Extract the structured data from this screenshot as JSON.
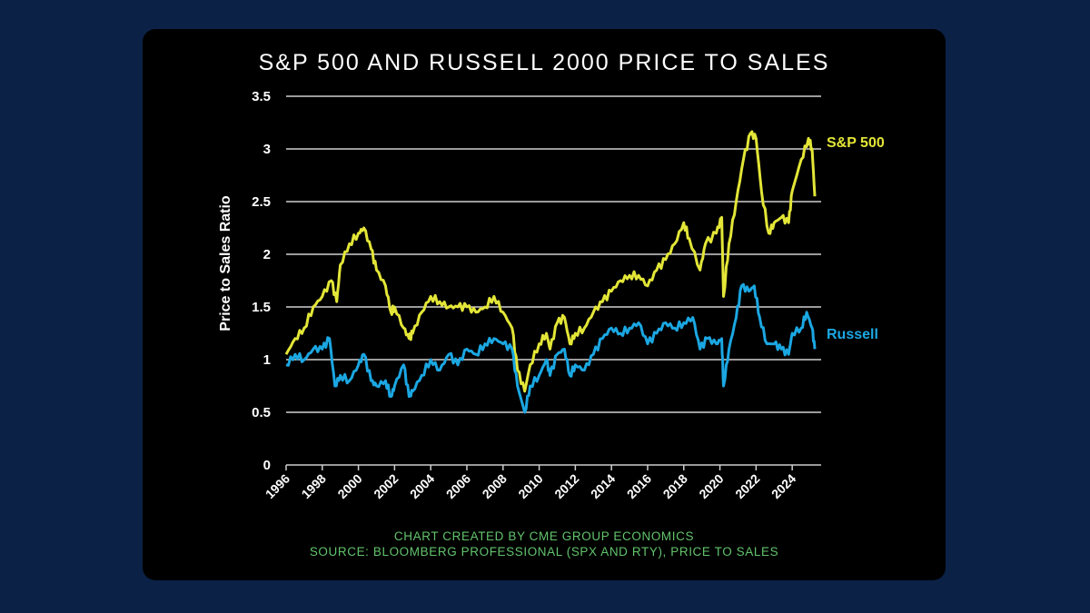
{
  "chart_data": {
    "type": "line",
    "title": "S&P 500 AND RUSSELL 2000 PRICE TO SALES",
    "xlabel": "",
    "ylabel": "Price to Sales Ratio",
    "xlim": [
      1996,
      2025.6
    ],
    "ylim": [
      0,
      3.5
    ],
    "grid": true,
    "x_ticks": [
      "1996",
      "1998",
      "2000",
      "2002",
      "2004",
      "2006",
      "2008",
      "2010",
      "2012",
      "2014",
      "2016",
      "2018",
      "2020",
      "2022",
      "2024"
    ],
    "y_ticks": [
      "0",
      "0.5",
      "1",
      "1.5",
      "2",
      "2.5",
      "3",
      "3.5"
    ],
    "legend": "direct labels at line ends (right)",
    "series": [
      {
        "name": "S&P 500",
        "color": "#e3e637",
        "x": [
          1996,
          1996.5,
          1997,
          1997.5,
          1998,
          1998.5,
          1998.8,
          1999,
          1999.5,
          2000,
          2000.3,
          2000.7,
          2001,
          2001.5,
          2001.8,
          2002,
          2002.5,
          2002.8,
          2003,
          2003.5,
          2004,
          2004.5,
          2005,
          2005.5,
          2006,
          2006.5,
          2007,
          2007.5,
          2008,
          2008.5,
          2008.8,
          2009.2,
          2009.5,
          2010,
          2010.4,
          2010.6,
          2011,
          2011.4,
          2011.7,
          2012,
          2012.5,
          2013,
          2013.5,
          2014,
          2014.5,
          2015,
          2015.5,
          2016,
          2016.5,
          2017,
          2017.5,
          2018,
          2018.3,
          2018.9,
          2019.2,
          2019.8,
          2020.1,
          2020.2,
          2020.5,
          2020.9,
          2021.3,
          2021.7,
          2022,
          2022.3,
          2022.7,
          2023,
          2023.4,
          2023.8,
          2024,
          2024.5,
          2024.9,
          2025.1,
          2025.25
        ],
        "y": [
          1.05,
          1.2,
          1.3,
          1.5,
          1.6,
          1.75,
          1.55,
          1.9,
          2.1,
          2.2,
          2.25,
          2.05,
          1.85,
          1.7,
          1.45,
          1.5,
          1.3,
          1.2,
          1.25,
          1.45,
          1.6,
          1.55,
          1.5,
          1.5,
          1.5,
          1.45,
          1.5,
          1.6,
          1.45,
          1.3,
          0.9,
          0.7,
          0.95,
          1.15,
          1.25,
          1.1,
          1.35,
          1.4,
          1.15,
          1.25,
          1.3,
          1.45,
          1.55,
          1.65,
          1.75,
          1.8,
          1.8,
          1.7,
          1.85,
          1.95,
          2.1,
          2.3,
          2.15,
          1.85,
          2.1,
          2.2,
          2.35,
          1.6,
          2.1,
          2.5,
          2.9,
          3.15,
          3.1,
          2.6,
          2.2,
          2.3,
          2.35,
          2.3,
          2.6,
          2.9,
          3.1,
          3.0,
          2.55
        ]
      },
      {
        "name": "Russell",
        "color": "#1ba7e2",
        "x": [
          1996,
          1996.5,
          1997,
          1997.5,
          1998,
          1998.4,
          1998.7,
          1999,
          1999.5,
          2000,
          2000.3,
          2000.7,
          2001,
          2001.5,
          2001.8,
          2002,
          2002.5,
          2002.8,
          2003,
          2003.5,
          2004,
          2004.5,
          2005,
          2005.5,
          2006,
          2006.5,
          2007,
          2007.5,
          2008,
          2008.5,
          2008.8,
          2009.2,
          2009.5,
          2010,
          2010.4,
          2010.6,
          2011,
          2011.4,
          2011.7,
          2012,
          2012.5,
          2013,
          2013.5,
          2014,
          2014.5,
          2015,
          2015.5,
          2016,
          2016.5,
          2017,
          2017.5,
          2018,
          2018.5,
          2018.9,
          2019.3,
          2019.8,
          2020.1,
          2020.2,
          2020.5,
          2020.9,
          2021.2,
          2021.6,
          2021.9,
          2022.2,
          2022.6,
          2023,
          2023.4,
          2023.8,
          2024,
          2024.5,
          2024.8,
          2025.1,
          2025.25
        ],
        "y": [
          0.95,
          1.05,
          1.0,
          1.1,
          1.1,
          1.2,
          0.75,
          0.85,
          0.8,
          0.95,
          1.05,
          0.8,
          0.75,
          0.8,
          0.65,
          0.75,
          0.95,
          0.65,
          0.7,
          0.85,
          1.0,
          0.9,
          1.05,
          0.95,
          1.1,
          1.05,
          1.15,
          1.2,
          1.15,
          1.1,
          0.75,
          0.5,
          0.75,
          0.85,
          1.0,
          0.85,
          1.05,
          1.1,
          0.85,
          0.95,
          0.9,
          1.05,
          1.2,
          1.3,
          1.25,
          1.3,
          1.35,
          1.15,
          1.25,
          1.35,
          1.3,
          1.35,
          1.4,
          1.1,
          1.2,
          1.15,
          1.2,
          0.75,
          1.1,
          1.4,
          1.7,
          1.65,
          1.7,
          1.4,
          1.15,
          1.15,
          1.1,
          1.05,
          1.25,
          1.3,
          1.45,
          1.3,
          1.1
        ]
      }
    ],
    "footer": [
      "CHART CREATED BY CME GROUP ECONOMICS",
      "SOURCE: BLOOMBERG PROFESSIONAL (SPX AND RTY), PRICE TO SALES"
    ]
  }
}
